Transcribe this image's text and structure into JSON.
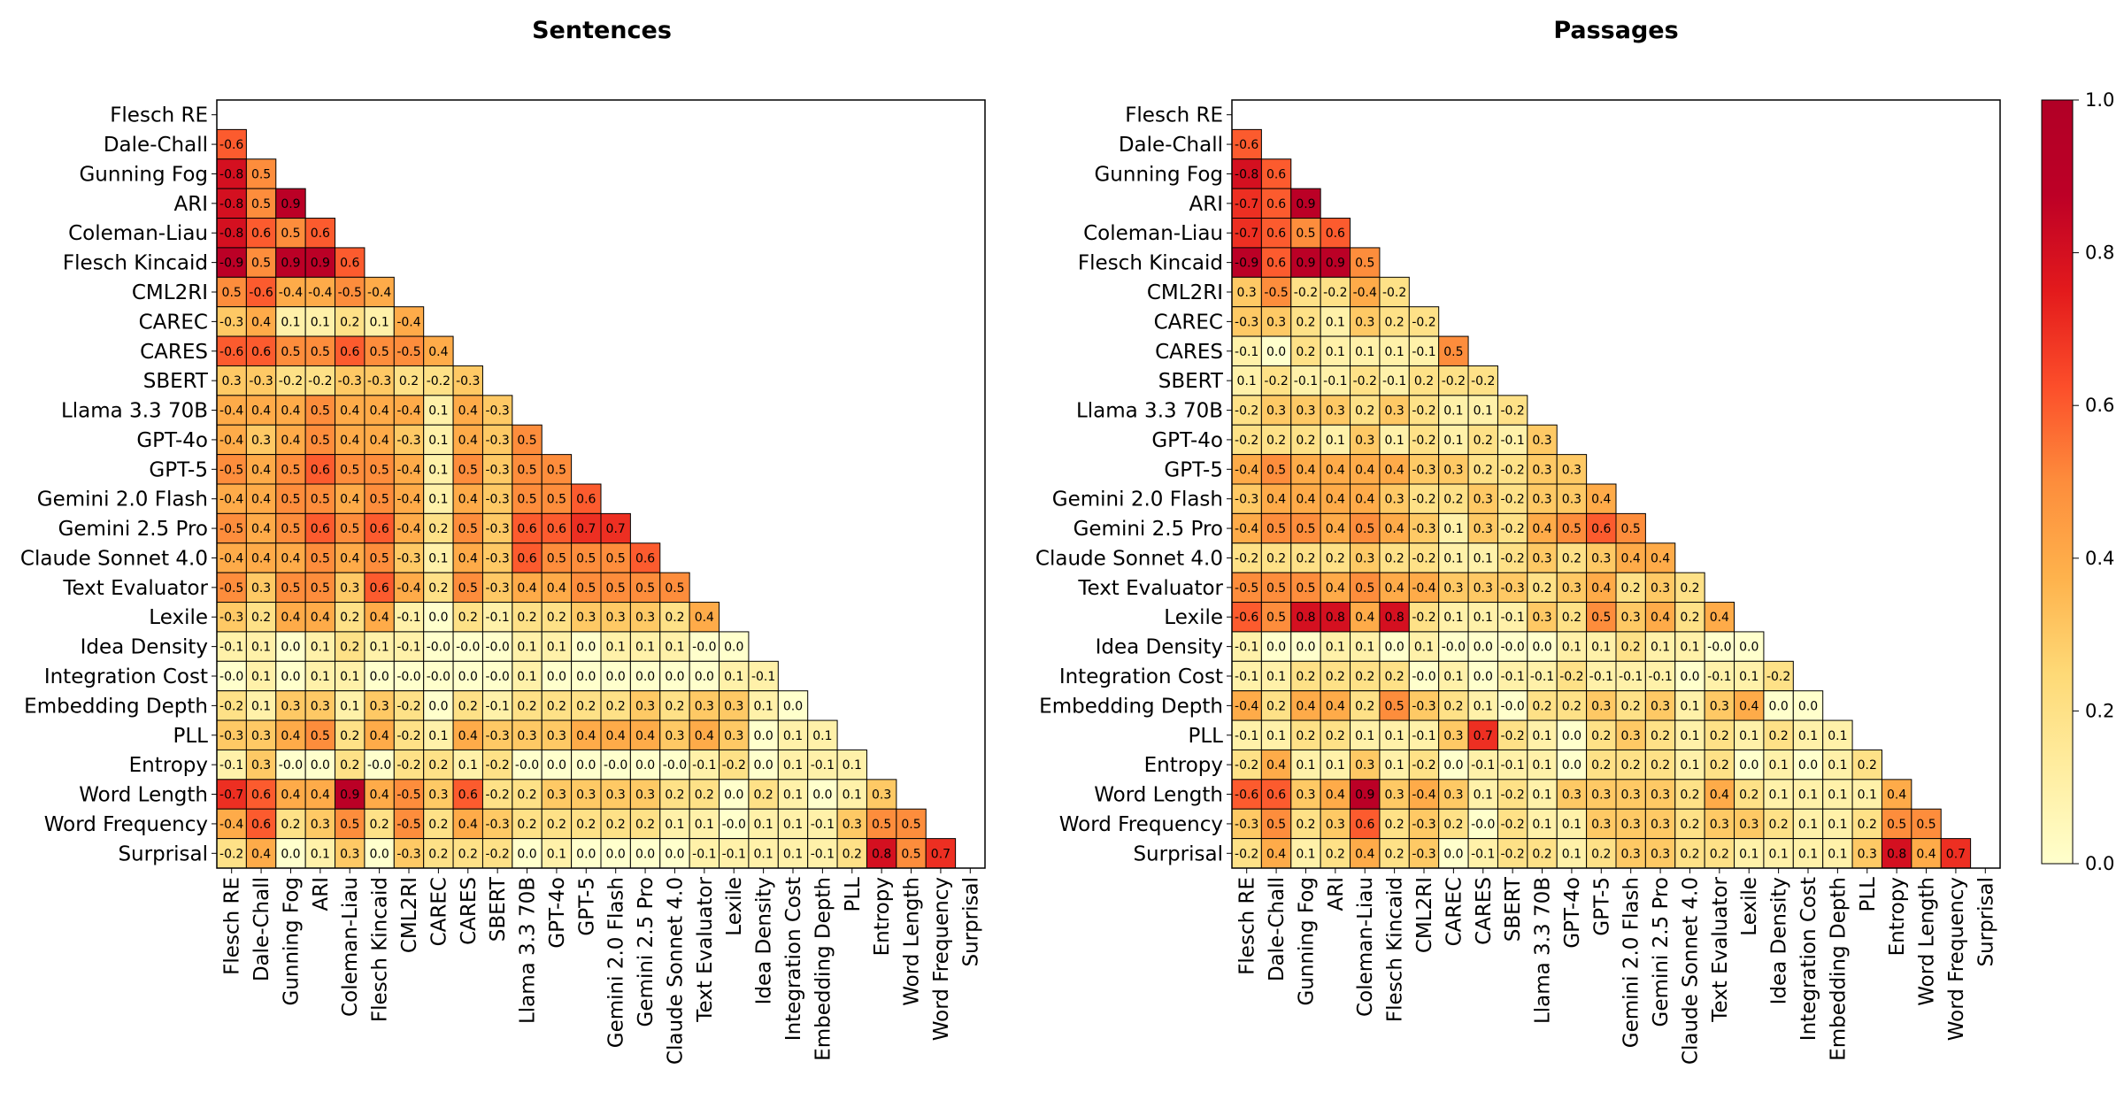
{
  "colors": {
    "stops": [
      "#ffffcc",
      "#ffeda0",
      "#fed976",
      "#feb24c",
      "#fd8d3c",
      "#fc4e2a",
      "#e31a1c",
      "#bd0026",
      "#b10026"
    ]
  },
  "chart_data": [
    {
      "type": "heatmap",
      "title": "Sentences",
      "labels": [
        "Flesch RE",
        "Dale-Chall",
        "Gunning Fog",
        "ARI",
        "Coleman-Liau",
        "Flesch Kincaid",
        "CML2RI",
        "CAREC",
        "CARES",
        "SBERT",
        "Llama 3.3 70B",
        "GPT-4o",
        "GPT-5",
        "Gemini 2.0 Flash",
        "Gemini 2.5 Pro",
        "Claude Sonnet 4.0",
        "Text Evaluator",
        "Lexile",
        "Idea Density",
        "Integration Cost",
        "Embedding Depth",
        "PLL",
        "Entropy",
        "Word Length",
        "Word Frequency",
        "Surprisal"
      ],
      "color_range": [
        0,
        1
      ],
      "color_by": "absolute value",
      "cells": [
        [],
        [
          "-0.6"
        ],
        [
          "-0.8",
          "0.5"
        ],
        [
          "-0.8",
          "0.5",
          "0.9"
        ],
        [
          "-0.8",
          "0.6",
          "0.5",
          "0.6"
        ],
        [
          "-0.9",
          "0.5",
          "0.9",
          "0.9",
          "0.6"
        ],
        [
          "0.5",
          "-0.6",
          "-0.4",
          "-0.4",
          "-0.5",
          "-0.4"
        ],
        [
          "-0.3",
          "0.4",
          "0.1",
          "0.1",
          "0.2",
          "0.1",
          "-0.4"
        ],
        [
          "-0.6",
          "0.6",
          "0.5",
          "0.5",
          "0.6",
          "0.5",
          "-0.5",
          "0.4"
        ],
        [
          "0.3",
          "-0.3",
          "-0.2",
          "-0.2",
          "-0.3",
          "-0.3",
          "0.2",
          "-0.2",
          "-0.3"
        ],
        [
          "-0.4",
          "0.4",
          "0.4",
          "0.5",
          "0.4",
          "0.4",
          "-0.4",
          "0.1",
          "0.4",
          "-0.3"
        ],
        [
          "-0.4",
          "0.3",
          "0.4",
          "0.5",
          "0.4",
          "0.4",
          "-0.3",
          "0.1",
          "0.4",
          "-0.3",
          "0.5"
        ],
        [
          "-0.5",
          "0.4",
          "0.5",
          "0.6",
          "0.5",
          "0.5",
          "-0.4",
          "0.1",
          "0.5",
          "-0.3",
          "0.5",
          "0.5"
        ],
        [
          "-0.4",
          "0.4",
          "0.5",
          "0.5",
          "0.4",
          "0.5",
          "-0.4",
          "0.1",
          "0.4",
          "-0.3",
          "0.5",
          "0.5",
          "0.6"
        ],
        [
          "-0.5",
          "0.4",
          "0.5",
          "0.6",
          "0.5",
          "0.6",
          "-0.4",
          "0.2",
          "0.5",
          "-0.3",
          "0.6",
          "0.6",
          "0.7",
          "0.7"
        ],
        [
          "-0.4",
          "0.4",
          "0.4",
          "0.5",
          "0.4",
          "0.5",
          "-0.3",
          "0.1",
          "0.4",
          "-0.3",
          "0.6",
          "0.5",
          "0.5",
          "0.5",
          "0.6"
        ],
        [
          "-0.5",
          "0.3",
          "0.5",
          "0.5",
          "0.3",
          "0.6",
          "-0.4",
          "0.2",
          "0.5",
          "-0.3",
          "0.4",
          "0.4",
          "0.5",
          "0.5",
          "0.5",
          "0.5"
        ],
        [
          "-0.3",
          "0.2",
          "0.4",
          "0.4",
          "0.2",
          "0.4",
          "-0.1",
          "0.0",
          "0.2",
          "-0.1",
          "0.2",
          "0.2",
          "0.3",
          "0.3",
          "0.3",
          "0.2",
          "0.4"
        ],
        [
          "-0.1",
          "0.1",
          "0.0",
          "0.1",
          "0.2",
          "0.1",
          "-0.1",
          "-0.0",
          "-0.0",
          "-0.0",
          "0.1",
          "0.1",
          "0.0",
          "0.1",
          "0.1",
          "0.1",
          "-0.0",
          "0.0"
        ],
        [
          "-0.0",
          "0.1",
          "0.0",
          "0.1",
          "0.1",
          "0.0",
          "-0.0",
          "-0.0",
          "0.0",
          "-0.0",
          "0.1",
          "0.0",
          "0.0",
          "0.0",
          "0.0",
          "0.0",
          "0.0",
          "0.1",
          "-0.1"
        ],
        [
          "-0.2",
          "0.1",
          "0.3",
          "0.3",
          "0.1",
          "0.3",
          "-0.2",
          "0.0",
          "0.2",
          "-0.1",
          "0.2",
          "0.2",
          "0.2",
          "0.2",
          "0.3",
          "0.2",
          "0.3",
          "0.3",
          "0.1",
          "0.0"
        ],
        [
          "-0.3",
          "0.3",
          "0.4",
          "0.5",
          "0.2",
          "0.4",
          "-0.2",
          "0.1",
          "0.4",
          "-0.3",
          "0.3",
          "0.3",
          "0.4",
          "0.4",
          "0.4",
          "0.3",
          "0.4",
          "0.3",
          "0.0",
          "0.1",
          "0.1"
        ],
        [
          "-0.1",
          "0.3",
          "-0.0",
          "0.0",
          "0.2",
          "-0.0",
          "-0.2",
          "0.2",
          "0.1",
          "-0.2",
          "-0.0",
          "0.0",
          "0.0",
          "-0.0",
          "0.0",
          "-0.0",
          "-0.1",
          "-0.2",
          "0.0",
          "0.1",
          "-0.1",
          "0.1"
        ],
        [
          "-0.7",
          "0.6",
          "0.4",
          "0.4",
          "0.9",
          "0.4",
          "-0.5",
          "0.3",
          "0.6",
          "-0.2",
          "0.2",
          "0.3",
          "0.3",
          "0.3",
          "0.3",
          "0.2",
          "0.2",
          "0.0",
          "0.2",
          "0.1",
          "0.0",
          "0.1",
          "0.3"
        ],
        [
          "-0.4",
          "0.6",
          "0.2",
          "0.3",
          "0.5",
          "0.2",
          "-0.5",
          "0.2",
          "0.4",
          "-0.3",
          "0.2",
          "0.2",
          "0.2",
          "0.2",
          "0.2",
          "0.1",
          "0.1",
          "-0.0",
          "0.1",
          "0.1",
          "-0.1",
          "0.3",
          "0.5",
          "0.5"
        ],
        [
          "-0.2",
          "0.4",
          "0.0",
          "0.1",
          "0.3",
          "0.0",
          "-0.3",
          "0.2",
          "0.2",
          "-0.2",
          "0.0",
          "0.1",
          "0.0",
          "0.0",
          "0.0",
          "0.0",
          "-0.1",
          "-0.1",
          "0.1",
          "0.1",
          "-0.1",
          "0.2",
          "0.8",
          "0.5",
          "0.7"
        ]
      ]
    },
    {
      "type": "heatmap",
      "title": "Passages",
      "labels": [
        "Flesch RE",
        "Dale-Chall",
        "Gunning Fog",
        "ARI",
        "Coleman-Liau",
        "Flesch Kincaid",
        "CML2RI",
        "CAREC",
        "CARES",
        "SBERT",
        "Llama 3.3 70B",
        "GPT-4o",
        "GPT-5",
        "Gemini 2.0 Flash",
        "Gemini 2.5 Pro",
        "Claude Sonnet 4.0",
        "Text Evaluator",
        "Lexile",
        "Idea Density",
        "Integration Cost",
        "Embedding Depth",
        "PLL",
        "Entropy",
        "Word Length",
        "Word Frequency",
        "Surprisal"
      ],
      "color_range": [
        0,
        1
      ],
      "color_by": "absolute value",
      "cells": [
        [],
        [
          "-0.6"
        ],
        [
          "-0.8",
          "0.6"
        ],
        [
          "-0.7",
          "0.6",
          "0.9"
        ],
        [
          "-0.7",
          "0.6",
          "0.5",
          "0.6"
        ],
        [
          "-0.9",
          "0.6",
          "0.9",
          "0.9",
          "0.5"
        ],
        [
          "0.3",
          "-0.5",
          "-0.2",
          "-0.2",
          "-0.4",
          "-0.2"
        ],
        [
          "-0.3",
          "0.3",
          "0.2",
          "0.1",
          "0.3",
          "0.2",
          "-0.2"
        ],
        [
          "-0.1",
          "0.0",
          "0.2",
          "0.1",
          "0.1",
          "0.1",
          "-0.1",
          "0.5"
        ],
        [
          "0.1",
          "-0.2",
          "-0.1",
          "-0.1",
          "-0.2",
          "-0.1",
          "0.2",
          "-0.2",
          "-0.2"
        ],
        [
          "-0.2",
          "0.3",
          "0.3",
          "0.3",
          "0.2",
          "0.3",
          "-0.2",
          "0.1",
          "0.1",
          "-0.2"
        ],
        [
          "-0.2",
          "0.2",
          "0.2",
          "0.1",
          "0.3",
          "0.1",
          "-0.2",
          "0.1",
          "0.2",
          "-0.1",
          "0.3"
        ],
        [
          "-0.4",
          "0.5",
          "0.4",
          "0.4",
          "0.4",
          "0.4",
          "-0.3",
          "0.3",
          "0.2",
          "-0.2",
          "0.3",
          "0.3"
        ],
        [
          "-0.3",
          "0.4",
          "0.4",
          "0.4",
          "0.4",
          "0.3",
          "-0.2",
          "0.2",
          "0.3",
          "-0.2",
          "0.3",
          "0.3",
          "0.4"
        ],
        [
          "-0.4",
          "0.5",
          "0.5",
          "0.4",
          "0.5",
          "0.4",
          "-0.3",
          "0.1",
          "0.3",
          "-0.2",
          "0.4",
          "0.5",
          "0.6",
          "0.5"
        ],
        [
          "-0.2",
          "0.2",
          "0.2",
          "0.2",
          "0.3",
          "0.2",
          "-0.2",
          "0.1",
          "0.1",
          "-0.2",
          "0.3",
          "0.2",
          "0.3",
          "0.4",
          "0.4"
        ],
        [
          "-0.5",
          "0.5",
          "0.5",
          "0.4",
          "0.5",
          "0.4",
          "-0.4",
          "0.3",
          "0.3",
          "-0.3",
          "0.2",
          "0.3",
          "0.4",
          "0.2",
          "0.3",
          "0.2"
        ],
        [
          "-0.6",
          "0.5",
          "0.8",
          "0.8",
          "0.4",
          "0.8",
          "-0.2",
          "0.1",
          "0.1",
          "-0.1",
          "0.3",
          "0.2",
          "0.5",
          "0.3",
          "0.4",
          "0.2",
          "0.4"
        ],
        [
          "-0.1",
          "0.0",
          "0.0",
          "0.1",
          "0.1",
          "0.0",
          "0.1",
          "-0.0",
          "0.0",
          "-0.0",
          "0.0",
          "0.1",
          "0.1",
          "0.2",
          "0.1",
          "0.1",
          "-0.0",
          "0.0"
        ],
        [
          "-0.1",
          "0.1",
          "0.2",
          "0.2",
          "0.2",
          "0.2",
          "-0.0",
          "0.1",
          "0.0",
          "-0.1",
          "-0.1",
          "-0.2",
          "-0.1",
          "-0.1",
          "-0.1",
          "0.0",
          "-0.1",
          "0.1",
          "-0.2"
        ],
        [
          "-0.4",
          "0.2",
          "0.4",
          "0.4",
          "0.2",
          "0.5",
          "-0.3",
          "0.2",
          "0.1",
          "-0.0",
          "0.2",
          "0.2",
          "0.3",
          "0.2",
          "0.3",
          "0.1",
          "0.3",
          "0.4",
          "0.0",
          "0.0"
        ],
        [
          "-0.1",
          "0.1",
          "0.2",
          "0.2",
          "0.1",
          "0.1",
          "-0.1",
          "0.3",
          "0.7",
          "-0.2",
          "0.1",
          "0.0",
          "0.2",
          "0.3",
          "0.2",
          "0.1",
          "0.2",
          "0.1",
          "0.2",
          "0.1",
          "0.1"
        ],
        [
          "-0.2",
          "0.4",
          "0.1",
          "0.1",
          "0.3",
          "0.1",
          "-0.2",
          "0.0",
          "-0.1",
          "-0.1",
          "0.1",
          "0.0",
          "0.2",
          "0.2",
          "0.2",
          "0.1",
          "0.2",
          "0.0",
          "0.1",
          "0.0",
          "0.1",
          "0.2"
        ],
        [
          "-0.6",
          "0.6",
          "0.3",
          "0.4",
          "0.9",
          "0.3",
          "-0.4",
          "0.3",
          "0.1",
          "-0.2",
          "0.1",
          "0.3",
          "0.3",
          "0.3",
          "0.3",
          "0.2",
          "0.4",
          "0.2",
          "0.1",
          "0.1",
          "0.1",
          "0.1",
          "0.4"
        ],
        [
          "-0.3",
          "0.5",
          "0.2",
          "0.3",
          "0.6",
          "0.2",
          "-0.3",
          "0.2",
          "-0.0",
          "-0.2",
          "0.1",
          "0.1",
          "0.3",
          "0.3",
          "0.3",
          "0.2",
          "0.3",
          "0.3",
          "0.2",
          "0.1",
          "0.1",
          "0.2",
          "0.5",
          "0.5"
        ],
        [
          "-0.2",
          "0.4",
          "0.1",
          "0.2",
          "0.4",
          "0.2",
          "-0.3",
          "0.0",
          "-0.1",
          "-0.2",
          "0.2",
          "0.1",
          "0.2",
          "0.3",
          "0.3",
          "0.2",
          "0.2",
          "0.1",
          "0.1",
          "0.1",
          "0.1",
          "0.3",
          "0.8",
          "0.4",
          "0.7"
        ]
      ]
    }
  ],
  "colorbar": {
    "range": [
      0,
      1
    ],
    "ticks": [
      "0.0",
      "0.2",
      "0.4",
      "0.6",
      "0.8",
      "1.0"
    ]
  }
}
